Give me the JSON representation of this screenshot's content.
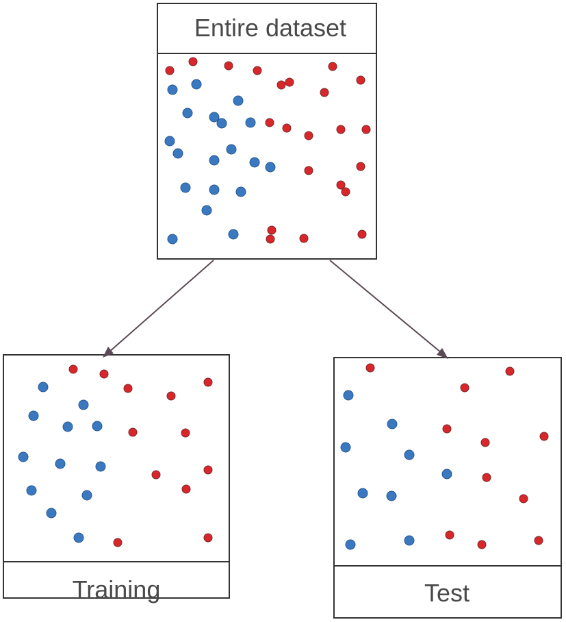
{
  "diagram": {
    "title": "Entire dataset",
    "colors": {
      "blue_point": "#3a78c0",
      "red_point": "#d8262b",
      "red_point_outline": "#7a2a2a",
      "blue_point_outline": "#2a5890",
      "arrow": "#5a4a55"
    },
    "nodes": {
      "entire": {
        "label": "Entire dataset"
      },
      "training": {
        "label": "Training"
      },
      "test": {
        "label": "Test"
      }
    },
    "edges": [
      {
        "from": "entire",
        "to": "training"
      },
      {
        "from": "entire",
        "to": "test"
      }
    ]
  }
}
